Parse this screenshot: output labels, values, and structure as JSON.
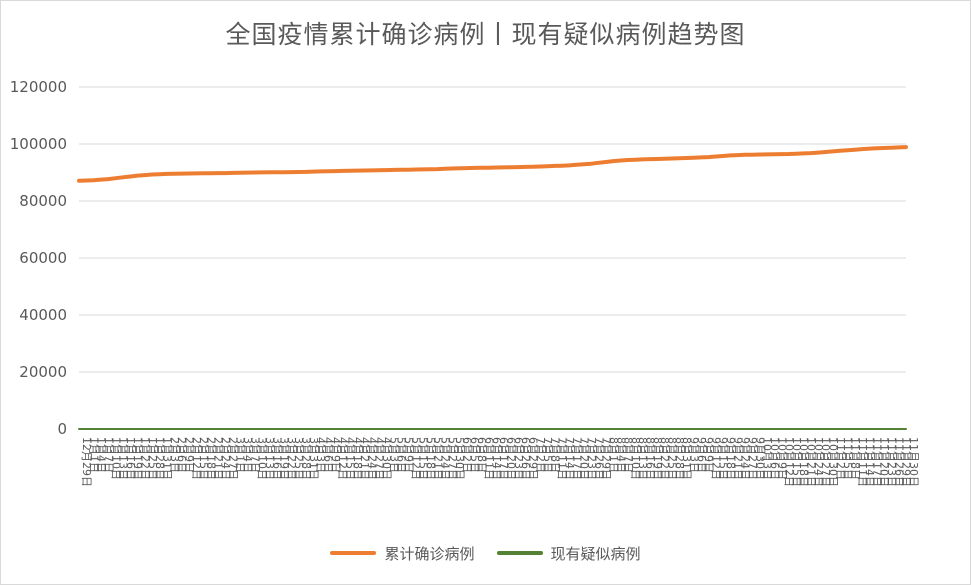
{
  "chart_data": {
    "type": "line",
    "title": "全国疫情累计确诊病例丨现有疑似病例趋势图",
    "xlabel": "",
    "ylabel": "",
    "ylim": [
      0,
      120000
    ],
    "yticks": [
      0,
      20000,
      40000,
      60000,
      80000,
      100000,
      120000
    ],
    "grid": true,
    "legend_position": "bottom",
    "x": [
      "12月29日",
      "1月1日",
      "1月4日",
      "1月7日",
      "1月10日",
      "1月13日",
      "1月16日",
      "1月19日",
      "1月22日",
      "1月25日",
      "1月28日",
      "1月31日",
      "2月3日",
      "2月6日",
      "2月9日",
      "2月12日",
      "2月15日",
      "2月18日",
      "2月21日",
      "2月24日",
      "2月27日",
      "3月1日",
      "3月4日",
      "3月7日",
      "3月10日",
      "3月13日",
      "3月16日",
      "3月19日",
      "3月22日",
      "3月25日",
      "3月28日",
      "3月31日",
      "4月3日",
      "4月6日",
      "4月9日",
      "4月12日",
      "4月15日",
      "4月18日",
      "4月21日",
      "4月24日",
      "4月27日",
      "4月30日",
      "5月3日",
      "5月6日",
      "5月9日",
      "5月12日",
      "5月15日",
      "5月18日",
      "5月21日",
      "5月24日",
      "5月27日",
      "5月30日",
      "6月2日",
      "6月5日",
      "6月8日",
      "6月11日",
      "6月14日",
      "6月17日",
      "6月20日",
      "6月23日",
      "6月26日",
      "6月29日",
      "7月2日",
      "7月5日",
      "7月8日",
      "7月11日",
      "7月14日",
      "7月17日",
      "7月20日",
      "7月23日",
      "7月26日",
      "7月29日",
      "8月1日",
      "8月4日",
      "8月7日",
      "8月10日",
      "8月13日",
      "8月16日",
      "8月19日",
      "8月22日",
      "8月25日",
      "8月28日",
      "8月31日",
      "9月3日",
      "9月6日",
      "9月9日",
      "9月12日",
      "9月15日",
      "9月18日",
      "9月21日",
      "9月24日",
      "9月27日",
      "9月30日",
      "10月3日",
      "10月6日",
      "10月9日",
      "10月12日",
      "10月15日",
      "10月18日",
      "10月21日",
      "10月24日",
      "10月27日",
      "10月30日",
      "11月2日",
      "11月5日",
      "11月8日",
      "11月11日",
      "11月14日",
      "11月17日",
      "11月20日",
      "11月23日",
      "11月26日",
      "11月29日",
      "11月30日"
    ],
    "series": [
      {
        "name": "累计确诊病例",
        "color": "#ed7d31",
        "values": [
          87100,
          87200,
          87300,
          87500,
          87700,
          88000,
          88300,
          88600,
          88900,
          89100,
          89300,
          89400,
          89500,
          89550,
          89600,
          89650,
          89700,
          89720,
          89750,
          89780,
          89800,
          89850,
          89900,
          89950,
          90000,
          90050,
          90080,
          90100,
          90120,
          90150,
          90180,
          90200,
          90300,
          90400,
          90450,
          90500,
          90550,
          90600,
          90650,
          90700,
          90750,
          90800,
          90850,
          90900,
          90950,
          91000,
          91050,
          91100,
          91150,
          91200,
          91300,
          91400,
          91500,
          91550,
          91600,
          91650,
          91700,
          91750,
          91800,
          91850,
          91900,
          91950,
          92000,
          92100,
          92200,
          92300,
          92400,
          92500,
          92700,
          92900,
          93100,
          93400,
          93700,
          94000,
          94200,
          94400,
          94500,
          94600,
          94700,
          94750,
          94800,
          94900,
          95000,
          95100,
          95200,
          95300,
          95400,
          95600,
          95800,
          96000,
          96100,
          96200,
          96250,
          96300,
          96350,
          96400,
          96450,
          96500,
          96600,
          96700,
          96800,
          97000,
          97200,
          97400,
          97600,
          97800,
          98000,
          98200,
          98400,
          98500,
          98600,
          98700,
          98800,
          98900
        ]
      },
      {
        "name": "现有疑似病例",
        "color": "#548235",
        "values": [
          0,
          0,
          0,
          0,
          0,
          0,
          0,
          0,
          0,
          0,
          0,
          0,
          0,
          0,
          0,
          0,
          0,
          0,
          0,
          0,
          0,
          0,
          0,
          0,
          0,
          0,
          0,
          0,
          0,
          0,
          0,
          0,
          0,
          0,
          0,
          0,
          0,
          0,
          0,
          0,
          0,
          0,
          0,
          0,
          0,
          0,
          0,
          0,
          0,
          0,
          0,
          0,
          0,
          0,
          0,
          0,
          0,
          0,
          0,
          0,
          0,
          0,
          0,
          0,
          0,
          0,
          0,
          0,
          0,
          0,
          0,
          0,
          0,
          0,
          0,
          0,
          0,
          0,
          0,
          0,
          0,
          0,
          0,
          0,
          0,
          0,
          0,
          0,
          0,
          0,
          0,
          0,
          0,
          0,
          0,
          0,
          0,
          0,
          0,
          0,
          0,
          0,
          0,
          0,
          0,
          0,
          0,
          0,
          0,
          0,
          0,
          0,
          0,
          0
        ]
      }
    ]
  },
  "colors": {
    "grid": "#d9d9d9",
    "axis_text": "#595959"
  }
}
